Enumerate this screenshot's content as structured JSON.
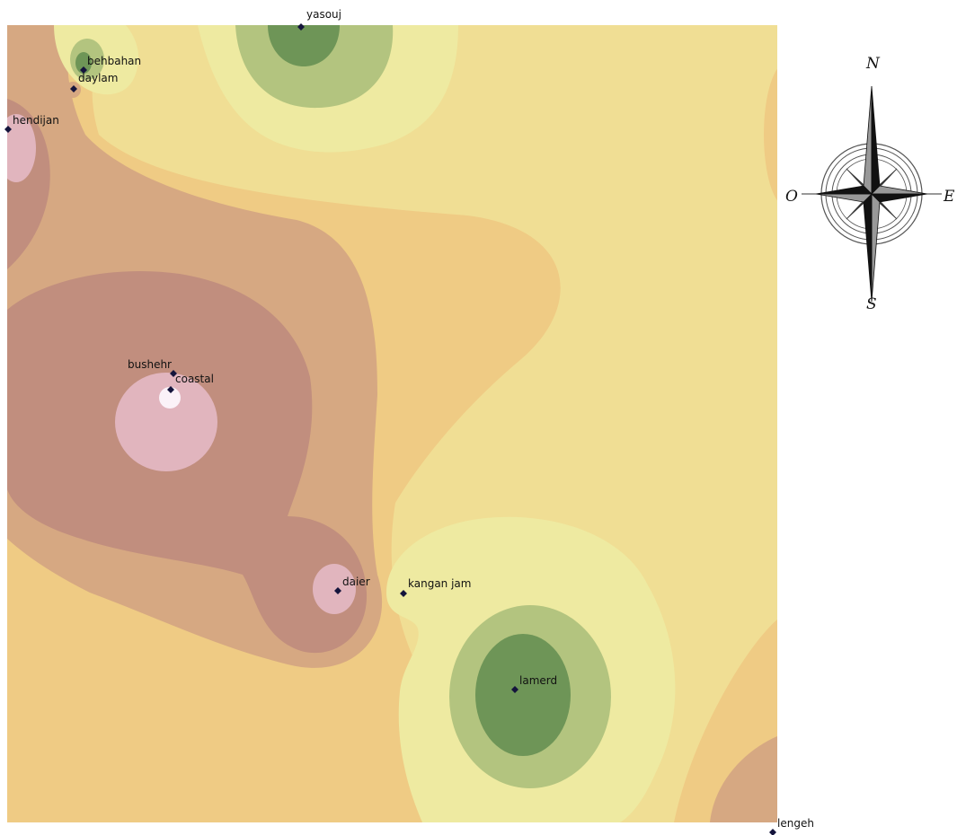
{
  "map": {
    "colors": {
      "class_1_dark_green": "#6e9557",
      "class_2_green": "#b3c47f",
      "class_3_pale_yellow": "#eeeaa1",
      "class_4_sand": "#f0de94",
      "class_5_orange": "#efcb84",
      "class_6_tan": "#d6a882",
      "class_7_brown": "#c18e7e",
      "class_8_pink": "#e1b5be",
      "class_9_white": "#fbf2f8",
      "station_marker": "#14143c"
    },
    "stations": [
      {
        "id": "yasouj",
        "label": "yasouj"
      },
      {
        "id": "behbahan",
        "label": "behbahan"
      },
      {
        "id": "daylam",
        "label": "daylam"
      },
      {
        "id": "hendijan",
        "label": "hendijan"
      },
      {
        "id": "bushehr",
        "label": "bushehr"
      },
      {
        "id": "coastal",
        "label": "coastal"
      },
      {
        "id": "daier",
        "label": "daier"
      },
      {
        "id": "kangan-jam",
        "label": "kangan jam"
      },
      {
        "id": "lamerd",
        "label": "lamerd"
      },
      {
        "id": "lengeh",
        "label": "lengeh"
      }
    ]
  },
  "compass": {
    "north": "N",
    "south": "S",
    "east": "E",
    "west": "O",
    "icon": "compass-rose-icon"
  }
}
